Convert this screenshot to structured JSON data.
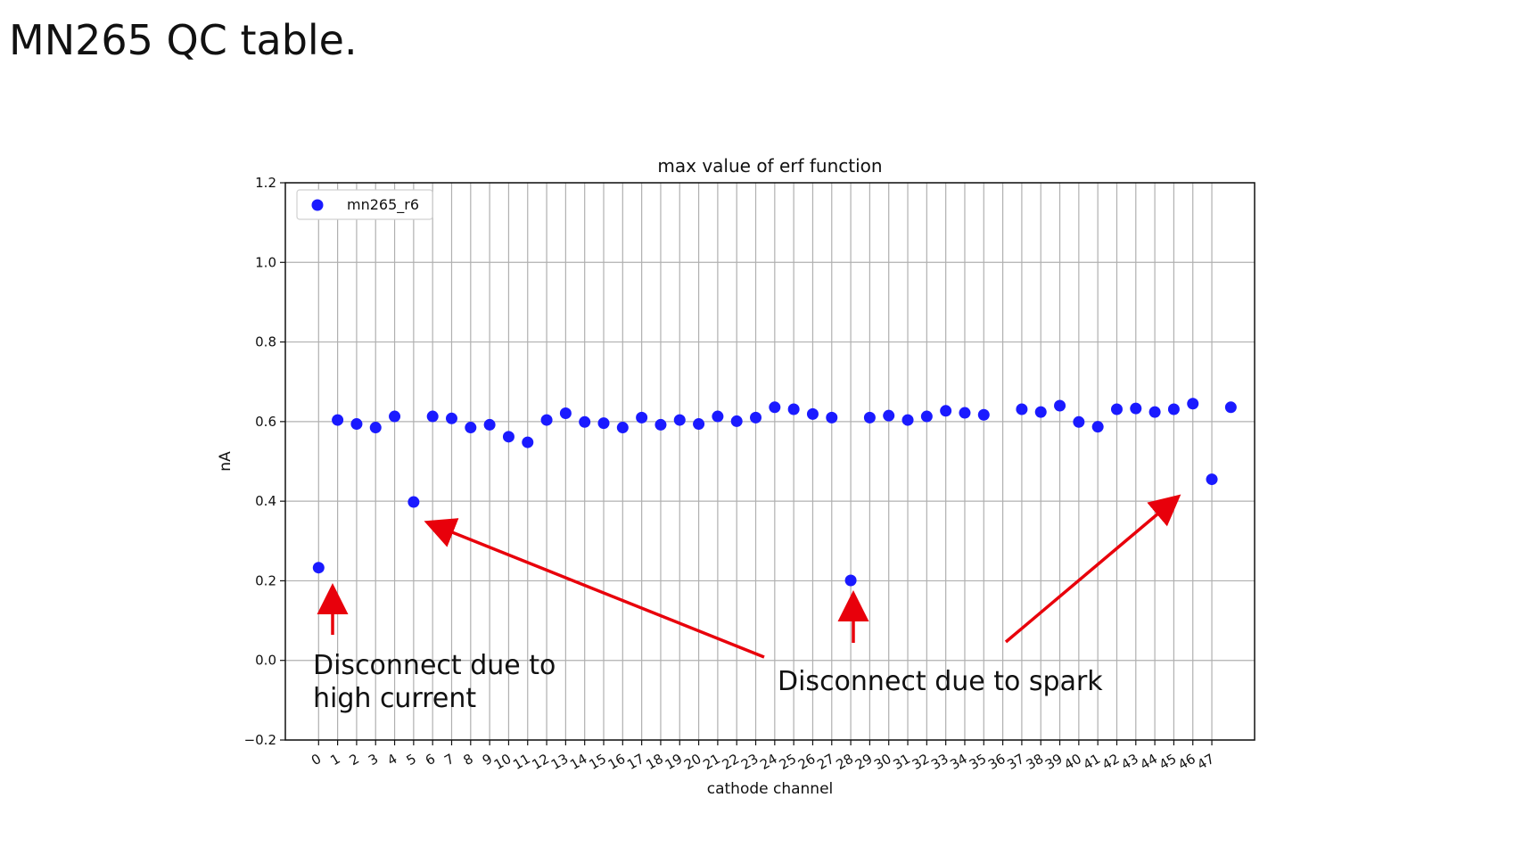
{
  "slide": {
    "title": "MN265 QC table."
  },
  "chart_data": {
    "type": "scatter",
    "title": "max value of erf function",
    "xlabel": "cathode channel",
    "ylabel": "nA",
    "xlim": [
      -1.75,
      49.25
    ],
    "ylim": [
      -0.2,
      1.2
    ],
    "yticks": [
      -0.2,
      0.0,
      0.2,
      0.4,
      0.6,
      0.8,
      1.0,
      1.2
    ],
    "ytick_labels": [
      "−0.2",
      "0.0",
      "0.2",
      "0.4",
      "0.6",
      "0.8",
      "1.0",
      "1.2"
    ],
    "x": [
      0,
      1,
      2,
      3,
      4,
      5,
      6,
      7,
      8,
      9,
      10,
      11,
      12,
      13,
      14,
      15,
      16,
      17,
      18,
      19,
      20,
      21,
      22,
      23,
      24,
      25,
      26,
      27,
      28,
      29,
      30,
      31,
      32,
      33,
      34,
      35,
      36,
      37,
      38,
      39,
      40,
      41,
      42,
      43,
      44,
      45,
      46,
      47
    ],
    "xtick_labels": [
      "0",
      "1",
      "2",
      "3",
      "4",
      "5",
      "6",
      "7",
      "8",
      "9",
      "10",
      "11",
      "12",
      "13",
      "14",
      "15",
      "16",
      "17",
      "18",
      "19",
      "20",
      "21",
      "22",
      "23",
      "24",
      "25",
      "26",
      "27",
      "28",
      "29",
      "30",
      "31",
      "32",
      "33",
      "34",
      "35",
      "36",
      "37",
      "38",
      "39",
      "40",
      "41",
      "42",
      "43",
      "44",
      "45",
      "46",
      "47"
    ],
    "series": [
      {
        "name": "mn265_r6",
        "color": "#1a1aff",
        "x": [
          0,
          1,
          2,
          3,
          4,
          5,
          6,
          7,
          8,
          9,
          10,
          11,
          12,
          13,
          14,
          15,
          16,
          17,
          18,
          19,
          20,
          21,
          22,
          23,
          24,
          25,
          26,
          27,
          28,
          29,
          30,
          31,
          32,
          33,
          34,
          35,
          37,
          38,
          39,
          40,
          41,
          42,
          43,
          44,
          45,
          46,
          47,
          48
        ],
        "values": [
          0.233,
          0.604,
          0.594,
          0.585,
          0.613,
          0.398,
          0.613,
          0.608,
          0.585,
          0.592,
          0.562,
          0.548,
          0.604,
          0.621,
          0.599,
          0.596,
          0.585,
          0.61,
          0.592,
          0.604,
          0.594,
          0.613,
          0.601,
          0.61,
          0.636,
          0.631,
          0.619,
          0.61,
          0.201,
          0.61,
          0.615,
          0.604,
          0.613,
          0.627,
          0.622,
          0.617,
          0.631,
          0.624,
          0.64,
          0.599,
          0.587,
          0.631,
          0.633,
          0.624,
          0.631,
          0.645,
          0.455,
          0.636
        ]
      }
    ],
    "grid": true,
    "legend": "upper-left",
    "annotations": [
      {
        "text_lines": [
          "Disconnect due to",
          "high current"
        ],
        "color": "#e8000b"
      },
      {
        "text_lines": [
          "Disconnect due to spark"
        ],
        "color": "#e8000b"
      }
    ]
  }
}
